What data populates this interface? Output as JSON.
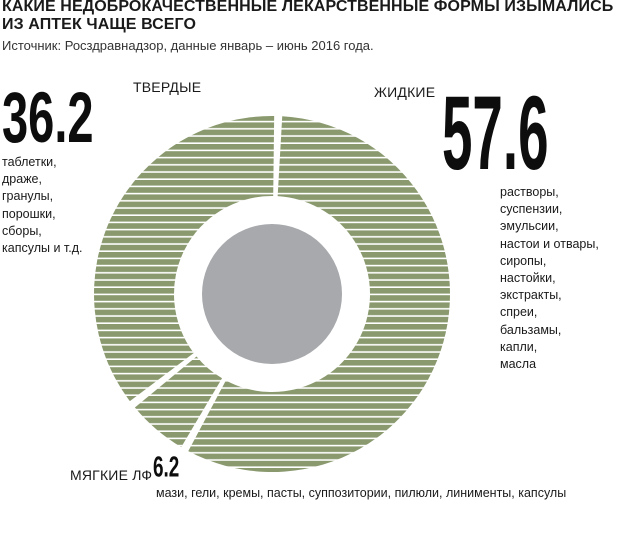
{
  "header": {
    "title": "КАКИЕ НЕДОБРОКАЧЕСТВЕННЫЕ ЛЕКАРСТВЕННЫЕ ФОРМЫ ИЗЫМАЛИСЬ ИЗ АПТЕК ЧАЩЕ ВСЕГО",
    "source": "Источник: Росздравнадзор, данные январь – июнь 2016 года."
  },
  "colors": {
    "segment_fill": "#8a9a6e",
    "segment_stripe": "#ffffff",
    "center_disc": "#a7a9ac",
    "text": "#1a1a1a"
  },
  "chart_data": {
    "type": "pie",
    "variant": "donut",
    "unit": "%",
    "segments": [
      {
        "key": "liquid",
        "label": "ЖИДКИЕ",
        "value": 57.6,
        "value_label": "57.6",
        "items": [
          "растворы,",
          "суспензии,",
          "эмульсии,",
          "настои и отвары,",
          "сиропы,",
          "настойки,",
          "экстракты,",
          "спреи,",
          "бальзамы,",
          "капли,",
          "масла"
        ]
      },
      {
        "key": "soft",
        "label": "МЯГКИЕ ЛФ",
        "value": 6.2,
        "value_label": "6.2",
        "items_text": "мази, гели, кремы, пасты, суппозитории, пилюли, линименты, капсулы"
      },
      {
        "key": "solid",
        "label": "ТВЕРДЫЕ",
        "value": 36.2,
        "value_label": "36.2",
        "items": [
          "таблетки,",
          "драже,",
          "гранулы,",
          "порошки,",
          "сборы,",
          "капсулы и т.д."
        ]
      }
    ]
  }
}
